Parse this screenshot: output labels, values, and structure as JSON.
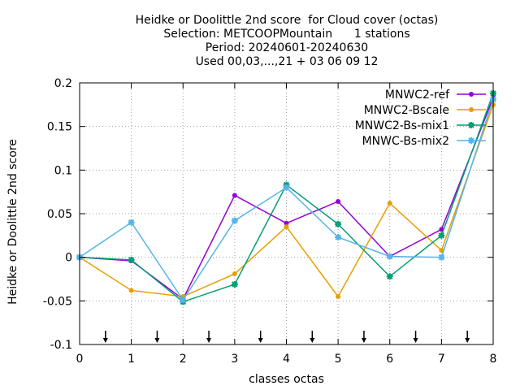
{
  "chart_data": {
    "type": "line",
    "title_lines": [
      "Heidke or Doolittle 2nd score  for Cloud cover (octas)",
      "Selection: METCOOPMountain      1 stations",
      "Period: 20240601-20240630",
      "Used 00,03,...,21 + 03 06 09 12"
    ],
    "xlabel": "classes octas",
    "ylabel": "Heidke or Doolittle 2nd score",
    "x": [
      0,
      1,
      2,
      3,
      4,
      5,
      6,
      7,
      8
    ],
    "xlim": [
      0,
      8
    ],
    "ylim": [
      -0.1,
      0.2
    ],
    "x_ticks": [
      "0",
      "1",
      "2",
      "3",
      "4",
      "5",
      "6",
      "7",
      "8"
    ],
    "y_ticks": [
      {
        "value": 0.2,
        "label": "0.2"
      },
      {
        "value": 0.15,
        "label": "0.15"
      },
      {
        "value": 0.1,
        "label": "0.1"
      },
      {
        "value": 0.05,
        "label": "0.05"
      },
      {
        "value": 0,
        "label": "0"
      },
      {
        "value": -0.05,
        "label": "-0.05"
      },
      {
        "value": -0.1,
        "label": "-0.1"
      }
    ],
    "grid": true,
    "legend_position": "top-right",
    "class_boundary_arrows": [
      0.5,
      1.5,
      2.5,
      3.5,
      4.5,
      5.5,
      6.5,
      7.5
    ],
    "series": [
      {
        "name": "MNWC2-ref",
        "color": "#9400d3",
        "marker": "circle",
        "values": [
          0,
          -0.004,
          -0.048,
          0.071,
          0.039,
          0.064,
          0.001,
          0.032,
          0.183
        ]
      },
      {
        "name": "MNWC2-Bscale",
        "color": "#e69f00",
        "marker": "circle",
        "values": [
          0,
          -0.038,
          -0.045,
          -0.019,
          0.035,
          -0.045,
          0.062,
          0.008,
          0.175
        ]
      },
      {
        "name": "MNWC2-Bs-mix1",
        "color": "#009e73",
        "marker": "star",
        "values": [
          0,
          -0.003,
          -0.051,
          -0.031,
          0.083,
          0.038,
          -0.022,
          0.025,
          0.188
        ]
      },
      {
        "name": "MNWC-Bs-mix2",
        "color": "#56b4e9",
        "marker": "star",
        "values": [
          0,
          0.04,
          -0.049,
          0.042,
          0.08,
          0.023,
          0.001,
          0,
          0.181
        ]
      }
    ]
  }
}
